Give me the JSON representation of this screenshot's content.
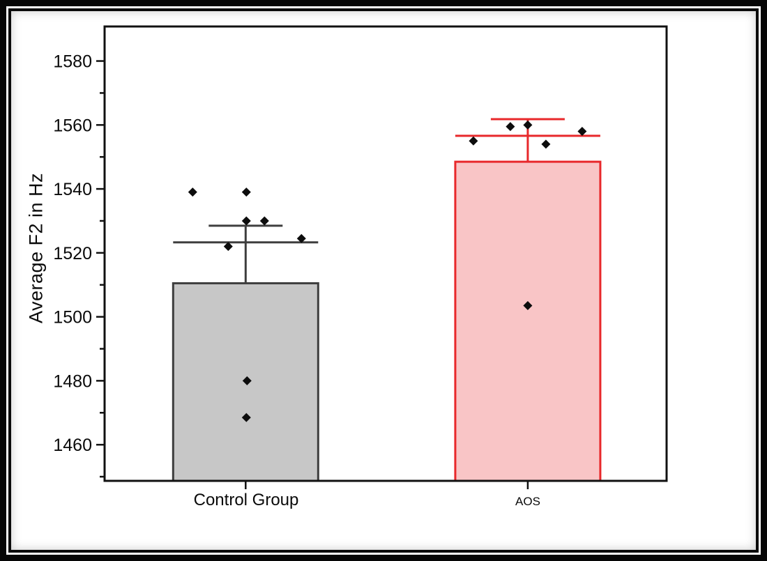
{
  "frame": {
    "outer_border_color": "#060606",
    "inner_border_color": "#0b0b0b",
    "background": "#ffffff"
  },
  "chart_data": {
    "type": "bar",
    "title": "",
    "xlabel": "",
    "ylabel": "Average F2 in Hz",
    "categories": [
      "Control Group",
      "AOS"
    ],
    "ylim": [
      1448.7,
      1590.8
    ],
    "yticks": [
      1460,
      1480,
      1500,
      1520,
      1540,
      1560,
      1580
    ],
    "yticks_minor": [
      1450,
      1470,
      1490,
      1510,
      1530,
      1550,
      1570
    ],
    "grid": false,
    "legend": false,
    "axis_color": "#111111",
    "marker": {
      "shape": "diamond",
      "color": "#0d0d0d",
      "size": 13
    },
    "series": [
      {
        "name": "Control Group",
        "bar_top": 1510.5,
        "mean_line": 1523.3,
        "error_cap": 1528.5,
        "fill": "#c7c7c7",
        "stroke": "#3e3e3e",
        "error_color": "#3e3e3e",
        "points": [
          {
            "offset": -76,
            "value": 1539
          },
          {
            "offset": 1,
            "value": 1539
          },
          {
            "offset": 1,
            "value": 1530
          },
          {
            "offset": 27,
            "value": 1530
          },
          {
            "offset": -25,
            "value": 1522
          },
          {
            "offset": 80,
            "value": 1524.5
          },
          {
            "offset": 2,
            "value": 1480
          },
          {
            "offset": 1,
            "value": 1468.5
          }
        ]
      },
      {
        "name": "AOS",
        "bar_top": 1548.5,
        "mean_line": 1556.6,
        "error_cap": 1561.8,
        "fill": "#f9c5c6",
        "stroke": "#e8282b",
        "error_color": "#e8282b",
        "points": [
          {
            "offset": -78,
            "value": 1555
          },
          {
            "offset": -25,
            "value": 1559.5
          },
          {
            "offset": 0,
            "value": 1560
          },
          {
            "offset": 26,
            "value": 1554
          },
          {
            "offset": 78,
            "value": 1558
          },
          {
            "offset": 0,
            "value": 1503.5
          }
        ]
      }
    ]
  }
}
